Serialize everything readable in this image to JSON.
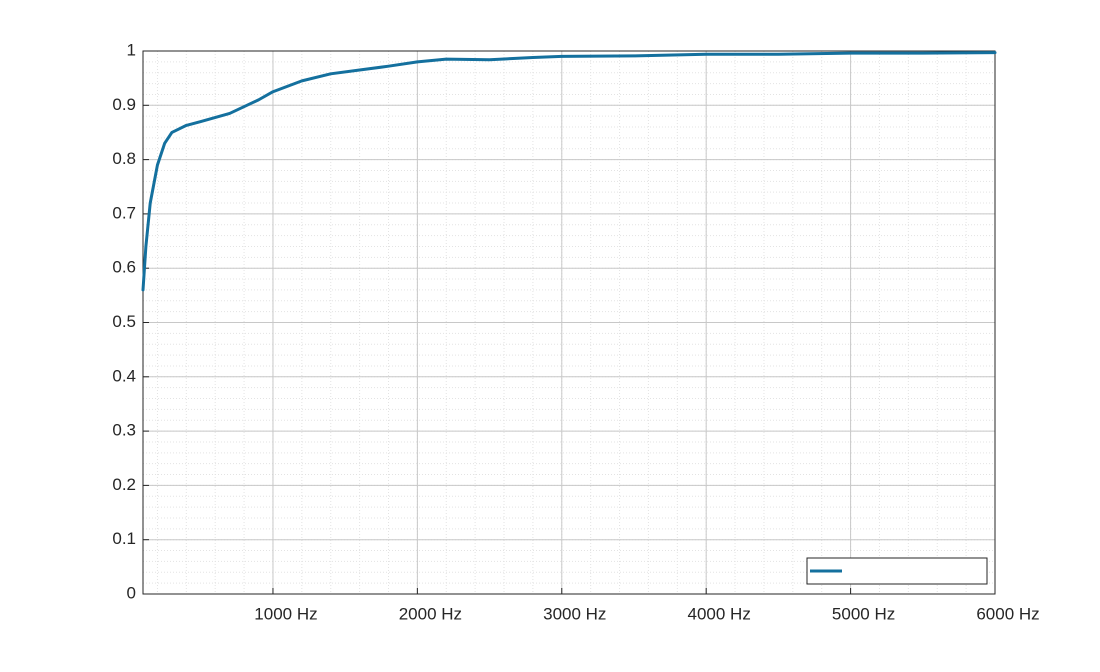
{
  "chart_data": {
    "type": "line",
    "x": [
      100,
      120,
      150,
      200,
      250,
      300,
      400,
      500,
      700,
      900,
      1000,
      1200,
      1400,
      1600,
      1800,
      2000,
      2200,
      2500,
      2800,
      3000,
      3500,
      4000,
      4500,
      5000,
      5500,
      6000
    ],
    "series": [
      {
        "color": "#14709e",
        "values": [
          0.56,
          0.64,
          0.72,
          0.79,
          0.83,
          0.85,
          0.863,
          0.87,
          0.885,
          0.91,
          0.925,
          0.945,
          0.958,
          0.965,
          0.972,
          0.98,
          0.985,
          0.984,
          0.988,
          0.99,
          0.991,
          0.994,
          0.994,
          0.996,
          0.996,
          0.997
        ]
      }
    ],
    "xlim": [
      100,
      6000
    ],
    "xticks": [
      {
        "value": 1000,
        "label": "1000 Hz"
      },
      {
        "value": 2000,
        "label": "2000 Hz"
      },
      {
        "value": 3000,
        "label": "3000 Hz"
      },
      {
        "value": 4000,
        "label": "4000 Hz"
      },
      {
        "value": 5000,
        "label": "5000 Hz"
      },
      {
        "value": 6000,
        "label": "6000 Hz"
      }
    ],
    "ylim": [
      0,
      1
    ],
    "yticks": [
      0,
      0.1,
      0.2,
      0.3,
      0.4,
      0.5,
      0.6,
      0.7,
      0.8,
      0.9,
      1
    ],
    "grid": true,
    "minor_grid": true,
    "legend": "lower right"
  }
}
